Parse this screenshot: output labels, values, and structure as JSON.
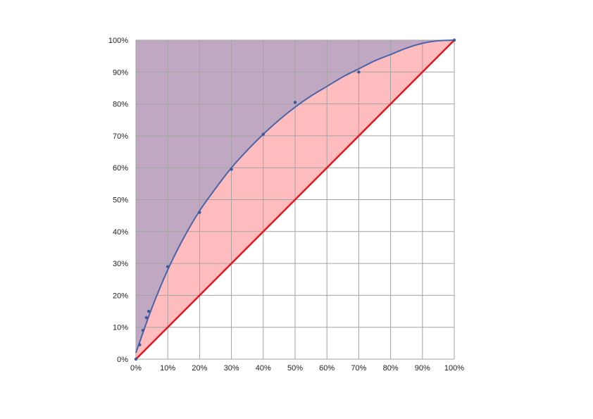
{
  "chart_data": {
    "type": "line",
    "title": "",
    "xlabel": "",
    "ylabel": "",
    "xlim": [
      0,
      100
    ],
    "ylim": [
      0,
      100
    ],
    "grid": true,
    "legend": "none",
    "x_ticks": [
      "0%",
      "10%",
      "20%",
      "30%",
      "40%",
      "50%",
      "60%",
      "70%",
      "80%",
      "90%",
      "100%"
    ],
    "y_ticks": [
      "0%",
      "10%",
      "20%",
      "30%",
      "40%",
      "50%",
      "60%",
      "70%",
      "80%",
      "90%",
      "100%"
    ],
    "x_tick_values": [
      0,
      10,
      20,
      30,
      40,
      50,
      60,
      70,
      80,
      90,
      100
    ],
    "y_tick_values": [
      0,
      10,
      20,
      30,
      40,
      50,
      60,
      70,
      80,
      90,
      100
    ],
    "series": [
      {
        "kind": "scatter",
        "color": "#3d5a9c",
        "x": [
          0,
          1.2,
          2.2,
          3.3,
          4,
          10,
          20,
          30,
          40,
          50,
          70,
          100
        ],
        "y": [
          0,
          4.5,
          9,
          13,
          15,
          29,
          46,
          59.5,
          70.5,
          80.5,
          90,
          100
        ]
      },
      {
        "kind": "fitted-curve",
        "color": "#4a64a8",
        "x": [
          0,
          5,
          10,
          15,
          20,
          25,
          30,
          35,
          40,
          45,
          50,
          55,
          60,
          65,
          70,
          75,
          80,
          85,
          90,
          95,
          100
        ],
        "y": [
          2,
          16,
          28,
          38,
          46.5,
          53.5,
          60,
          65.5,
          70.5,
          75,
          79,
          82.5,
          85.5,
          88.5,
          91,
          93.5,
          95.5,
          97.5,
          99,
          99.8,
          100
        ]
      },
      {
        "kind": "equality-line",
        "color": "#e8151b",
        "x": [
          0,
          100
        ],
        "y": [
          0,
          100
        ]
      }
    ],
    "fill_colors": {
      "above_curve": "#c0a8c2",
      "between_curve_and_line": "#ffbcbf",
      "plot_background": "#ffffff",
      "grid": "#a3a3a3"
    }
  }
}
